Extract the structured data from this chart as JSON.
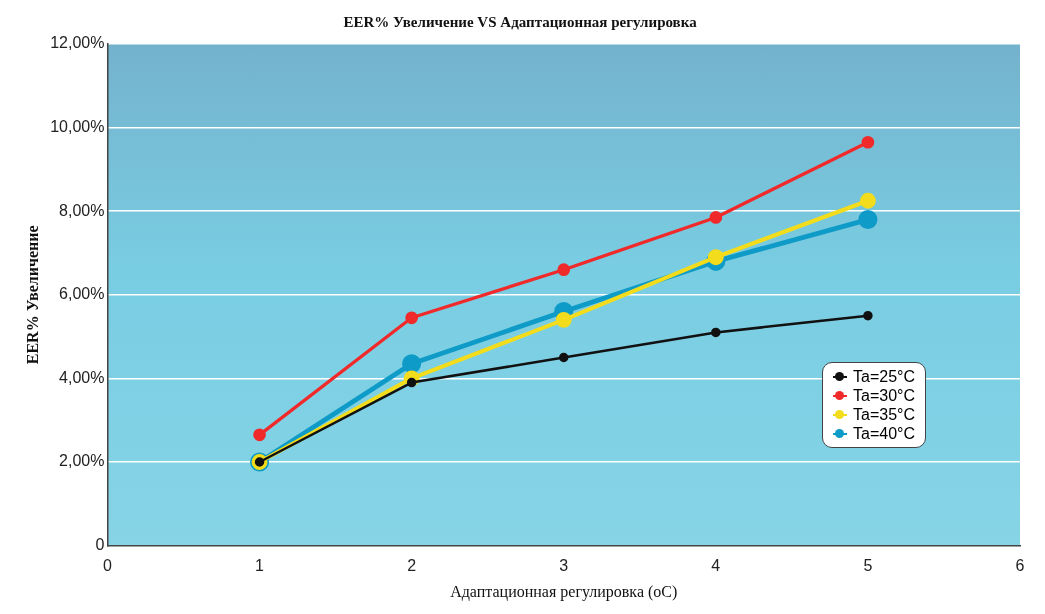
{
  "chart_data": {
    "type": "line",
    "title": "EER% Увеличение VS Адаптационная регулировка",
    "xlabel": "Адаптационная регулировка (oC)",
    "ylabel": "EER% Увеличение",
    "x": [
      1,
      2,
      3,
      4,
      5
    ],
    "series": [
      {
        "name": "Ta=25°C",
        "color": "#111111",
        "values": [
          2.0,
          3.9,
          4.5,
          5.1,
          5.5
        ]
      },
      {
        "name": "Ta=30°C",
        "color": "#f02a2a",
        "values": [
          2.65,
          5.45,
          6.6,
          7.85,
          9.65
        ]
      },
      {
        "name": "Ta=35°C",
        "color": "#f2dc1c",
        "values": [
          2.0,
          4.0,
          5.4,
          6.9,
          8.25
        ]
      },
      {
        "name": "Ta=40°C",
        "color": "#0f9bc8",
        "values": [
          2.0,
          4.35,
          5.6,
          6.8,
          7.8
        ]
      }
    ],
    "xlim": [
      0,
      6
    ],
    "xticks": [
      0,
      1,
      2,
      3,
      4,
      5,
      6
    ],
    "ylim": [
      0,
      12
    ],
    "yticks": [
      {
        "value": 0,
        "label": "0"
      },
      {
        "value": 2,
        "label": "2,00%"
      },
      {
        "value": 4,
        "label": "4,00%"
      },
      {
        "value": 6,
        "label": "6,00%"
      },
      {
        "value": 8,
        "label": "8,00%"
      },
      {
        "value": 10,
        "label": "10,00%"
      },
      {
        "value": 12,
        "label": "12,00%"
      }
    ],
    "grid": "y",
    "legend": "right",
    "marker": "circle",
    "line_style": "solid"
  }
}
